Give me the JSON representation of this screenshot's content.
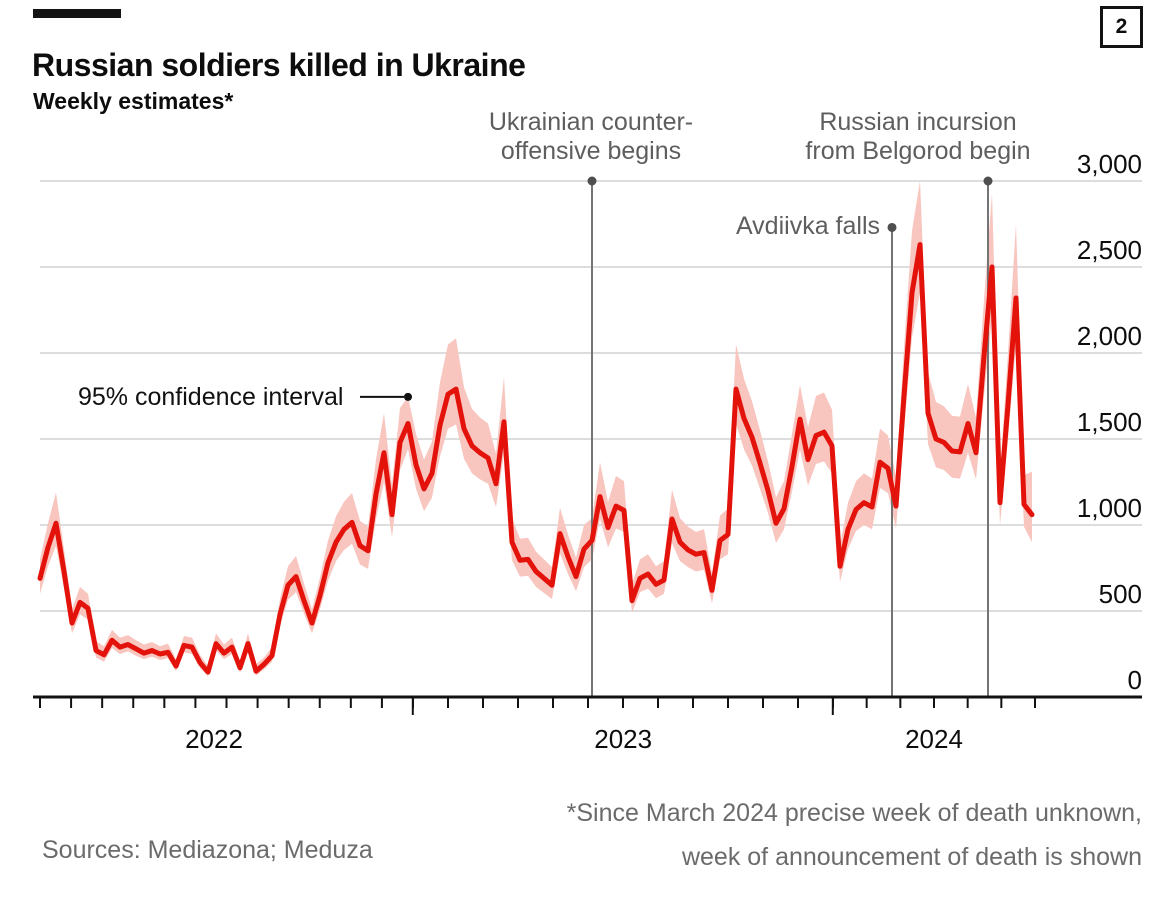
{
  "header": {
    "title": "Russian soldiers killed in Ukraine",
    "subtitle": "Weekly estimates*",
    "figure_number": "2"
  },
  "footer": {
    "sources": "Sources: Mediazona; Meduza",
    "footnote_lines": [
      "*Since March 2024 precise week of death unknown,",
      "week of announcement of death is shown"
    ]
  },
  "colors": {
    "line": "#E3120B",
    "band": "#F8C5BF",
    "grid": "#D8D8D8",
    "axis": "#121212",
    "annotation_line": "#747474",
    "annotation_dot": "#4F4F4F",
    "annotation_text": "#5E5E5E",
    "muted_text": "#6B6B6B"
  },
  "chart_data": {
    "type": "line",
    "title": "Russian soldiers killed in Ukraine",
    "subtitle": "Weekly estimates*",
    "x_unit": "week",
    "ylim": [
      0,
      3000
    ],
    "grid": "horizontal",
    "yticks": [
      {
        "value": 0,
        "label": "0"
      },
      {
        "value": 500,
        "label": "500"
      },
      {
        "value": 1000,
        "label": "1,000"
      },
      {
        "value": 1500,
        "label": "1,500"
      },
      {
        "value": 2000,
        "label": "2,000"
      },
      {
        "value": 2500,
        "label": "2,500"
      },
      {
        "value": 3000,
        "label": "3,000"
      }
    ],
    "x_axis": {
      "year_labels": [
        {
          "label": "2022",
          "center_week": 21.75
        },
        {
          "label": "2023",
          "center_week": 72.9
        },
        {
          "label": "2024",
          "center_week": 111.75
        }
      ],
      "year_boundary_weeks": [
        46.6,
        99.1
      ]
    },
    "series": [
      {
        "name": "Estimated weekly deaths",
        "values": [
          690,
          870,
          1010,
          730,
          430,
          550,
          515,
          270,
          245,
          330,
          290,
          305,
          280,
          255,
          270,
          250,
          260,
          180,
          300,
          290,
          200,
          145,
          310,
          255,
          290,
          170,
          310,
          150,
          190,
          240,
          480,
          650,
          700,
          560,
          430,
          590,
          780,
          900,
          975,
          1015,
          880,
          850,
          1180,
          1420,
          1060,
          1480,
          1590,
          1350,
          1210,
          1300,
          1580,
          1760,
          1790,
          1560,
          1460,
          1420,
          1390,
          1240,
          1600,
          900,
          795,
          800,
          730,
          690,
          650,
          950,
          815,
          700,
          860,
          910,
          1165,
          985,
          1110,
          1085,
          560,
          690,
          715,
          655,
          680,
          1035,
          900,
          855,
          830,
          840,
          620,
          910,
          945,
          1790,
          1620,
          1510,
          1360,
          1200,
          1010,
          1095,
          1340,
          1615,
          1380,
          1520,
          1540,
          1460,
          760,
          975,
          1090,
          1130,
          1105,
          1365,
          1330,
          1110,
          1750,
          2350,
          2630,
          1650,
          1500,
          1480,
          1430,
          1425,
          1590,
          1420,
          1980,
          2500,
          1130,
          1700,
          2320,
          1120,
          1060
        ]
      }
    ],
    "band": {
      "name": "95% confidence interval",
      "upper": [
        800,
        1010,
        1190,
        860,
        510,
        640,
        600,
        325,
        295,
        390,
        345,
        360,
        330,
        305,
        320,
        295,
        310,
        220,
        355,
        345,
        245,
        180,
        370,
        305,
        345,
        210,
        370,
        190,
        230,
        290,
        570,
        760,
        820,
        660,
        510,
        695,
        910,
        1050,
        1135,
        1185,
        1025,
        990,
        1380,
        1650,
        1235,
        1680,
        1745,
        1530,
        1380,
        1485,
        1830,
        2050,
        2085,
        1800,
        1675,
        1625,
        1590,
        1415,
        1860,
        1040,
        920,
        925,
        845,
        800,
        755,
        1100,
        945,
        810,
        1000,
        1040,
        1365,
        1135,
        1285,
        1255,
        655,
        800,
        830,
        760,
        790,
        1205,
        1040,
        990,
        960,
        975,
        720,
        1055,
        1095,
        2050,
        1850,
        1720,
        1550,
        1370,
        1160,
        1255,
        1530,
        1815,
        1570,
        1750,
        1770,
        1670,
        880,
        1130,
        1255,
        1300,
        1270,
        1560,
        1520,
        1280,
        2030,
        2710,
        3000,
        1890,
        1715,
        1690,
        1635,
        1630,
        1820,
        1625,
        2310,
        2930,
        1300,
        2000,
        2750,
        1290,
        1310
      ],
      "lower": [
        600,
        760,
        880,
        630,
        370,
        480,
        450,
        230,
        205,
        285,
        250,
        265,
        240,
        220,
        235,
        215,
        225,
        150,
        260,
        250,
        170,
        120,
        270,
        220,
        250,
        140,
        270,
        125,
        160,
        205,
        415,
        565,
        610,
        485,
        370,
        510,
        675,
        790,
        855,
        890,
        770,
        745,
        1035,
        1250,
        930,
        1320,
        1440,
        1210,
        1080,
        1160,
        1400,
        1560,
        1585,
        1385,
        1300,
        1265,
        1240,
        1105,
        1415,
        795,
        700,
        705,
        640,
        605,
        570,
        835,
        715,
        615,
        755,
        800,
        1035,
        870,
        980,
        960,
        490,
        610,
        630,
        575,
        600,
        895,
        790,
        755,
        730,
        740,
        545,
        800,
        830,
        1590,
        1440,
        1345,
        1210,
        1070,
        895,
        975,
        1195,
        1440,
        1230,
        1355,
        1370,
        1300,
        670,
        860,
        965,
        1000,
        975,
        1215,
        1185,
        980,
        1550,
        2090,
        2350,
        1470,
        1335,
        1320,
        1275,
        1270,
        1420,
        1265,
        1750,
        2210,
        1000,
        1500,
        2050,
        990,
        900
      ]
    },
    "annotations": [
      {
        "id": "counteroffensive",
        "lines": [
          "Ukrainian counter-",
          "offensive begins"
        ],
        "week": 69,
        "dot_value": 3000
      },
      {
        "id": "avdiivka",
        "lines": [
          "Avdiivka falls"
        ],
        "week": 106.5,
        "dot_value": 2730
      },
      {
        "id": "belgorod",
        "lines": [
          "Russian incursion",
          "from Belgorod begin"
        ],
        "week": 118.5,
        "dot_value": 3000
      }
    ],
    "ci": {
      "label": "95% confidence interval",
      "week": 46,
      "value": 1745
    }
  }
}
